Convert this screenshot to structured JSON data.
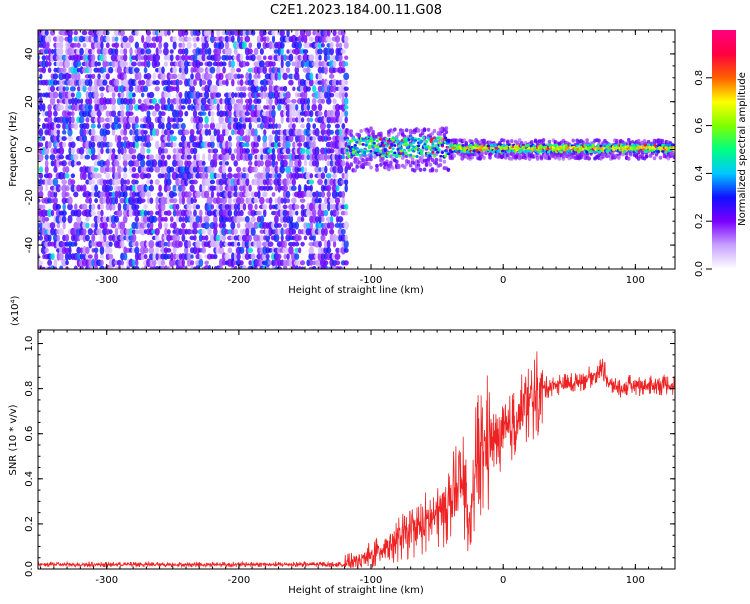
{
  "figure": {
    "title": "C2E1.2023.184.00.11.G08"
  },
  "chart_data": [
    {
      "type": "heatmap",
      "xlabel": "Height of straight line (km)",
      "ylabel": "Frequency (Hz)",
      "xlim": [
        -352,
        130
      ],
      "ylim": [
        -50,
        50
      ],
      "xticks": [
        -300,
        -200,
        -100,
        0,
        100
      ],
      "xtick_labels": [
        "-300",
        "-200",
        "-100",
        "0",
        "100"
      ],
      "yticks": [
        -40,
        -20,
        0,
        20,
        40
      ],
      "ytick_labels": [
        "-40",
        "-20",
        "0",
        "20",
        "40"
      ],
      "colorbar": {
        "label": "Normalized spectral amplitude",
        "range": [
          0,
          1
        ],
        "ticks": [
          0.0,
          0.2,
          0.4,
          0.6,
          0.8
        ],
        "tick_labels": [
          "0.0",
          "0.2",
          "0.4",
          "0.6",
          "0.8"
        ],
        "colors": [
          "#ffffff",
          "#c8a0ff",
          "#7a00ff",
          "#1010ff",
          "#00c8ff",
          "#00ff80",
          "#80ff00",
          "#ffff00",
          "#ff6000",
          "#ff0040",
          "#ff0080"
        ]
      },
      "regions": [
        {
          "x_range": [
            -352,
            -118
          ],
          "y_range": [
            -50,
            50
          ],
          "description_level": 0.25
        },
        {
          "x_range": [
            -118,
            130
          ],
          "y_range": [
            -5,
            5
          ],
          "description_level": 0.7
        }
      ]
    },
    {
      "type": "line",
      "xlabel": "Height of straight line (km)",
      "ylabel": "SNR (10 * v/v)",
      "scale_label": "(x10⁴)",
      "xlim": [
        -352,
        130
      ],
      "ylim": [
        0,
        1.06
      ],
      "xticks": [
        -300,
        -200,
        -100,
        0,
        100
      ],
      "xtick_labels": [
        "-300",
        "-200",
        "-100",
        "0",
        "100"
      ],
      "yticks": [
        0.0,
        0.2,
        0.4,
        0.6,
        0.8,
        1.0
      ],
      "ytick_labels": [
        "0.0",
        "0.2",
        "0.4",
        "0.6",
        "0.8",
        "1.0"
      ],
      "color": "#ee2222",
      "series": [
        {
          "x": [
            -352,
            -300,
            -250,
            -200,
            -150,
            -120,
            -100,
            -90,
            -80,
            -70,
            -60,
            -50,
            -40,
            -30,
            -25,
            -20,
            -10,
            0,
            10,
            20,
            30,
            40,
            50,
            60,
            70,
            75,
            80,
            90,
            100,
            110,
            120,
            130
          ],
          "values": [
            0.02,
            0.02,
            0.02,
            0.02,
            0.02,
            0.02,
            0.06,
            0.1,
            0.13,
            0.16,
            0.2,
            0.24,
            0.3,
            0.38,
            0.14,
            0.5,
            0.56,
            0.58,
            0.66,
            0.74,
            0.8,
            0.82,
            0.82,
            0.84,
            0.86,
            0.9,
            0.82,
            0.8,
            0.82,
            0.81,
            0.82,
            0.81
          ]
        }
      ]
    }
  ]
}
